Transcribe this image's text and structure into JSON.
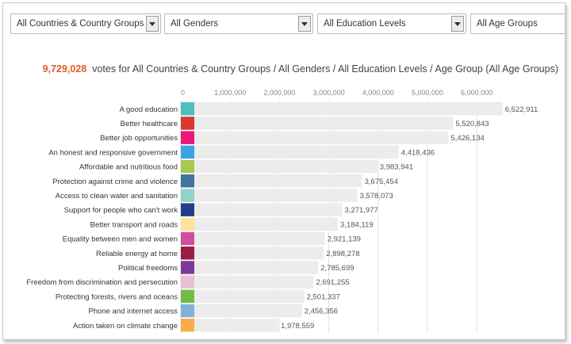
{
  "filters": [
    {
      "value": "All Countries & Country Groups"
    },
    {
      "value": "All Genders"
    },
    {
      "value": "All Education Levels"
    },
    {
      "value": "All Age Groups"
    }
  ],
  "summary": {
    "count": "9,729,028",
    "text": "votes for All Countries & Country Groups / All Genders / All Education Levels / Age Group (All Age Groups)"
  },
  "chart_data": {
    "type": "bar",
    "orientation": "horizontal",
    "title": "",
    "xlabel": "",
    "ylabel": "",
    "xlim": [
      0,
      6500000
    ],
    "ticks": [
      0,
      1000000,
      2000000,
      3000000,
      4000000,
      5000000,
      6000000
    ],
    "tick_labels": [
      "0",
      "1,000,000",
      "2,000,000",
      "3,000,000",
      "4,000,000",
      "5,000,000",
      "6,000,000"
    ],
    "categories": [
      "A good education",
      "Better healthcare",
      "Better job opportunities",
      "An honest and responsive government",
      "Affordable and nutritious food",
      "Protection against crime and violence",
      "Access to clean water and sanitation",
      "Support for people who can't work",
      "Better transport and roads",
      "Equality between men and women",
      "Reliable energy at home",
      "Political freedoms",
      "Freedom from discrimination and persecution",
      "Protecting forests, rivers and oceans",
      "Phone and internet access",
      "Action taken on climate change"
    ],
    "values": [
      6522911,
      5520843,
      5426134,
      4418436,
      3983941,
      3675454,
      3578073,
      3271977,
      3184119,
      2921139,
      2898278,
      2785699,
      2691255,
      2501337,
      2456356,
      1978559
    ],
    "value_labels": [
      "6,522,911",
      "5,520,843",
      "5,426,134",
      "4,418,436",
      "3,983,941",
      "3,675,454",
      "3,578,073",
      "3,271,977",
      "3,184,119",
      "2,921,139",
      "2,898,278",
      "2,785,699",
      "2,691,255",
      "2,501,337",
      "2,456,356",
      "1,978,559"
    ],
    "colors": [
      "#4dbfbf",
      "#d83a2e",
      "#e8197a",
      "#3aa3e3",
      "#a6c94f",
      "#40759e",
      "#93d2c7",
      "#233d8a",
      "#fbe49a",
      "#cf4e9c",
      "#9b1c46",
      "#7c3a9a",
      "#e6bfd0",
      "#6fbe44",
      "#7fb2db",
      "#f8ad48"
    ],
    "bar_color": "#ececec"
  }
}
